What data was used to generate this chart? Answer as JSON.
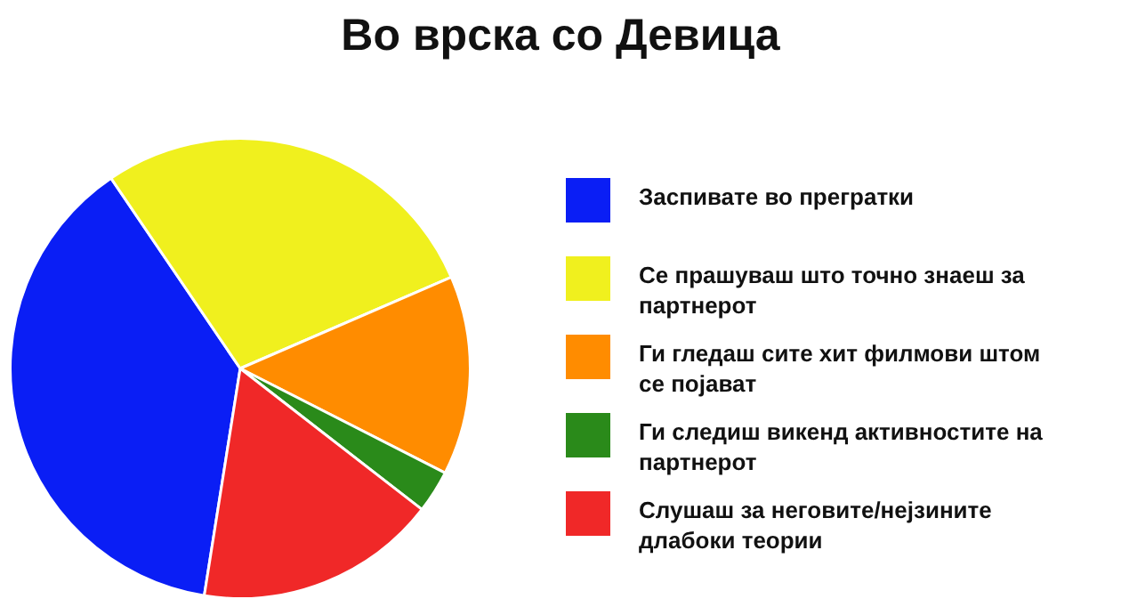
{
  "chart_data": {
    "type": "pie",
    "title": "Во врска со Девица",
    "categories": [
      "Заспивате во прегратки",
      "Се прашуваш што точно знаеш за партнерот",
      "Ги гледаш сите хит филмови штом се појават",
      "Ги следиш викенд активностите на партнерот",
      "Слушаш за неговите/нејзините длабоки теории"
    ],
    "values": [
      38,
      28,
      14,
      3,
      17
    ],
    "colors": [
      "#0a1ef5",
      "#f0f01e",
      "#ff8c00",
      "#2a8a1a",
      "#f02828"
    ],
    "legend": "right"
  }
}
